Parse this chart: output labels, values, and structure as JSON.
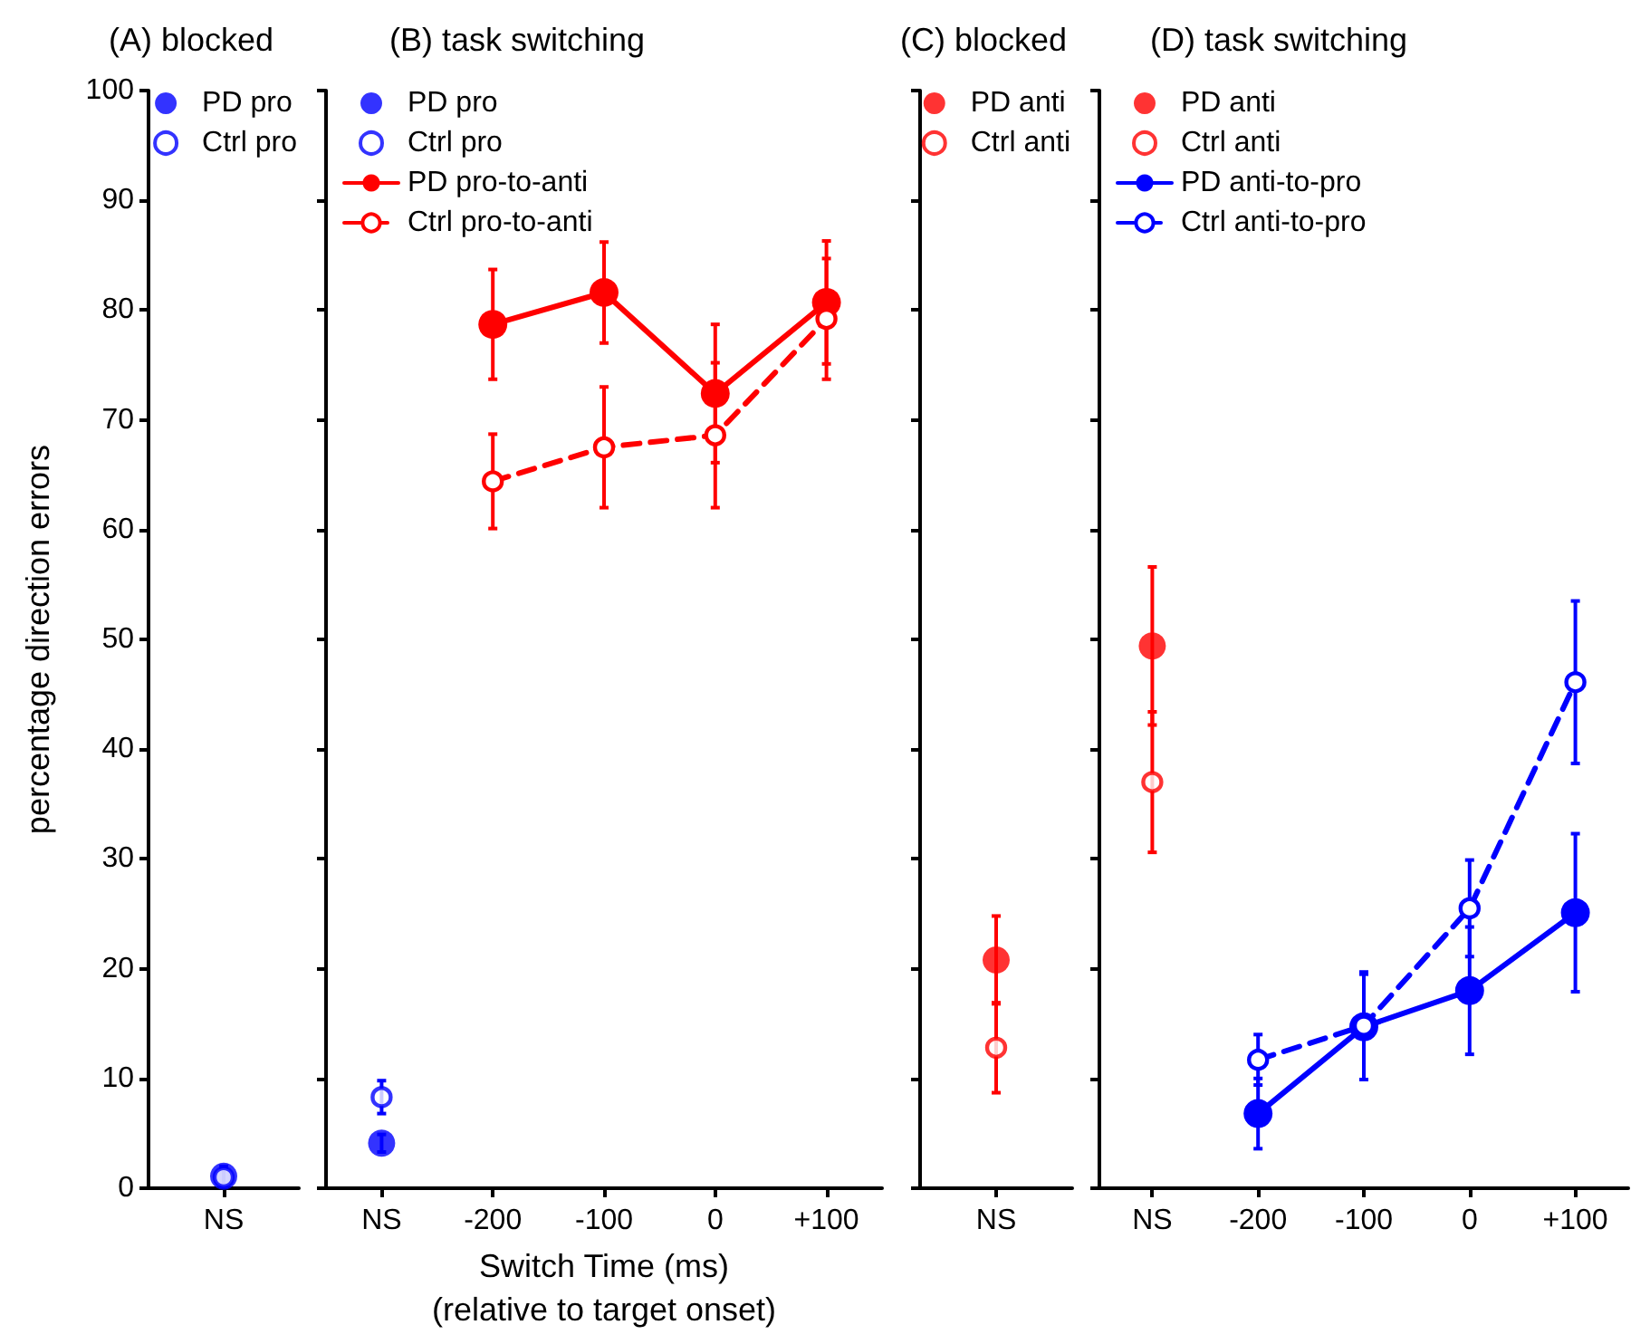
{
  "chart_data": [
    {
      "type": "scatter",
      "title": "(A) blocked",
      "ylabel": "percentage direction errors",
      "categories": [
        "NS"
      ],
      "ylim": [
        0,
        100
      ],
      "yticks": [
        0,
        10,
        20,
        30,
        40,
        50,
        60,
        70,
        80,
        90,
        100
      ],
      "legend": "top right",
      "grid": false,
      "marker": "circle",
      "series": [
        {
          "name": "PD pro",
          "color": "#0000ff",
          "values": [
            1.1
          ],
          "errors": [
            0.9
          ]
        },
        {
          "name": "Ctrl pro",
          "color": "#0000ff",
          "values": [
            1.0
          ],
          "errors": [
            0.8
          ]
        }
      ]
    },
    {
      "type": "line",
      "title": "(B) task switching",
      "xlabel": "Switch Time (ms)\n(relative to target onset)",
      "categories": [
        "NS",
        "-200",
        "-100",
        "0",
        "+100"
      ],
      "ylim": [
        0,
        100
      ],
      "yticks": [
        0,
        10,
        20,
        30,
        40,
        50,
        60,
        70,
        80,
        90,
        100
      ],
      "tick_labels": "x",
      "legend": "top left",
      "grid": false,
      "marker": "circle",
      "series": [
        {
          "name": "PD pro",
          "type": "scatter",
          "color": "#0000ff",
          "x": [
            "NS"
          ],
          "values": [
            4.1
          ],
          "errors": [
            0.8
          ]
        },
        {
          "name": "Ctrl pro",
          "type": "scatter",
          "color": "#0000ff",
          "x": [
            "NS"
          ],
          "values": [
            8.3
          ],
          "errors": [
            1.5
          ]
        },
        {
          "name": "PD pro-to-anti",
          "color": "#ff0000",
          "line_style": "solid",
          "x": [
            "-200",
            "-100",
            "0",
            "+100"
          ],
          "values": [
            78.7,
            81.6,
            72.4,
            80.7
          ],
          "errors": [
            5.0,
            4.6,
            6.3,
            5.6
          ]
        },
        {
          "name": "Ctrl pro-to-anti",
          "color": "#ff0000",
          "line_style": "dashed",
          "x": [
            "-200",
            "-100",
            "0",
            "+100"
          ],
          "values": [
            64.4,
            67.5,
            68.6,
            79.2
          ],
          "errors": [
            4.3,
            5.5,
            6.6,
            5.5
          ]
        }
      ]
    },
    {
      "type": "scatter",
      "title": "(C) blocked",
      "categories": [
        "NS"
      ],
      "ylim": [
        0,
        100
      ],
      "yticks": [
        0,
        10,
        20,
        30,
        40,
        50,
        60,
        70,
        80,
        90,
        100
      ],
      "tick_labels": "x",
      "legend": "top right",
      "grid": false,
      "marker": "circle",
      "series": [
        {
          "name": "PD anti",
          "color": "#ff0000",
          "values": [
            20.8
          ],
          "errors": [
            4.0
          ]
        },
        {
          "name": "Ctrl anti",
          "color": "#ff0000",
          "values": [
            12.8
          ],
          "errors": [
            4.1
          ]
        }
      ]
    },
    {
      "type": "line",
      "title": "(D) task switching",
      "categories": [
        "NS",
        "-200",
        "-100",
        "0",
        "+100"
      ],
      "ylim": [
        0,
        100
      ],
      "yticks": [
        0,
        10,
        20,
        30,
        40,
        50,
        60,
        70,
        80,
        90,
        100
      ],
      "tick_labels": "x",
      "legend": "top left",
      "grid": false,
      "marker": "circle",
      "series": [
        {
          "name": "PD anti",
          "type": "scatter",
          "color": "#ff0000",
          "x": [
            "NS"
          ],
          "values": [
            49.4
          ],
          "errors": [
            7.2
          ]
        },
        {
          "name": "Ctrl anti",
          "type": "scatter",
          "color": "#ff0000",
          "x": [
            "NS"
          ],
          "values": [
            37.0
          ],
          "errors": [
            6.4
          ]
        },
        {
          "name": "PD anti-to-pro",
          "color": "#0000ff",
          "line_style": "solid",
          "x": [
            "-200",
            "-100",
            "0",
            "+100"
          ],
          "values": [
            6.8,
            14.7,
            18.0,
            25.1
          ],
          "errors": [
            3.2,
            4.8,
            5.8,
            7.2
          ]
        },
        {
          "name": "Ctrl anti-to-pro",
          "color": "#0000ff",
          "line_style": "dashed",
          "x": [
            "-200",
            "-100",
            "0",
            "+100"
          ],
          "values": [
            11.7,
            14.8,
            25.5,
            46.1
          ],
          "errors": [
            2.3,
            4.9,
            4.4,
            7.4
          ]
        }
      ]
    }
  ]
}
